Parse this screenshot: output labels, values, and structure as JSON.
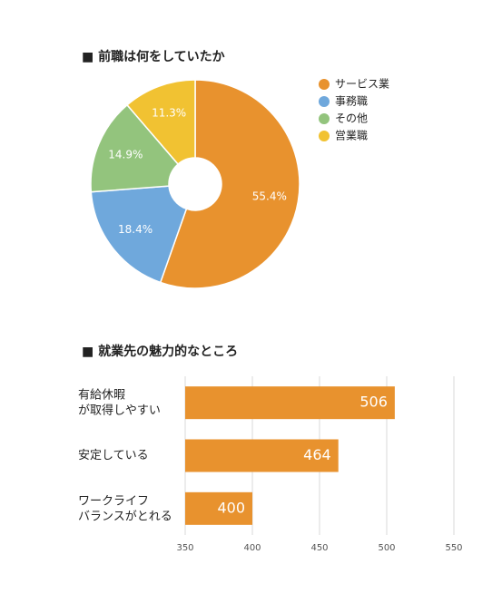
{
  "chart_data": [
    {
      "type": "pie",
      "title": "■ 前職は何をしていたか",
      "categories": [
        "サービス業",
        "事務職",
        "その他",
        "営業職"
      ],
      "values": [
        55.4,
        18.4,
        14.9,
        11.3
      ],
      "value_labels": [
        "55.4%",
        "18.4%",
        "14.9%",
        "11.3%"
      ],
      "colors": [
        "#e8922e",
        "#6fa8dc",
        "#93c47d",
        "#f1c232"
      ],
      "donut": true,
      "legend": "right"
    },
    {
      "type": "barh",
      "title": "■ 就業先の魅力的なところ",
      "categories": [
        "有給休暇\nが取得しやすい",
        "安定している",
        "ワークライフ\nバランスがとれる"
      ],
      "values": [
        506,
        464,
        400
      ],
      "color": "#e8922e",
      "xlim": [
        350,
        550
      ],
      "xticks": [
        350,
        400,
        450,
        500,
        550
      ],
      "grid": true
    }
  ]
}
